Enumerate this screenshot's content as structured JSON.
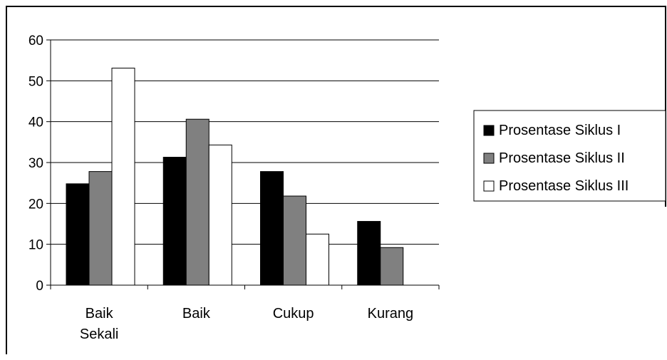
{
  "chart_data": {
    "type": "bar",
    "title": "",
    "xlabel": "",
    "ylabel": "",
    "categories": [
      [
        "Baik",
        "Sekali"
      ],
      [
        "Baik"
      ],
      [
        "Cukup"
      ],
      [
        "Kurang"
      ]
    ],
    "series": [
      {
        "name": "Prosentase Siklus I",
        "values": [
          24.8,
          31.3,
          27.8,
          15.6
        ],
        "color": "#000000"
      },
      {
        "name": "Prosentase Siklus II",
        "values": [
          27.8,
          40.6,
          21.8,
          9.2
        ],
        "color": "#808080"
      },
      {
        "name": "Prosentase Siklus III",
        "values": [
          53.1,
          34.3,
          12.5,
          0
        ],
        "color": "#ffffff"
      }
    ],
    "ylim": [
      0,
      60
    ],
    "yticks": [
      "0",
      "10",
      "20",
      "30",
      "40",
      "50",
      "60"
    ],
    "grid": true,
    "legend": "right"
  }
}
